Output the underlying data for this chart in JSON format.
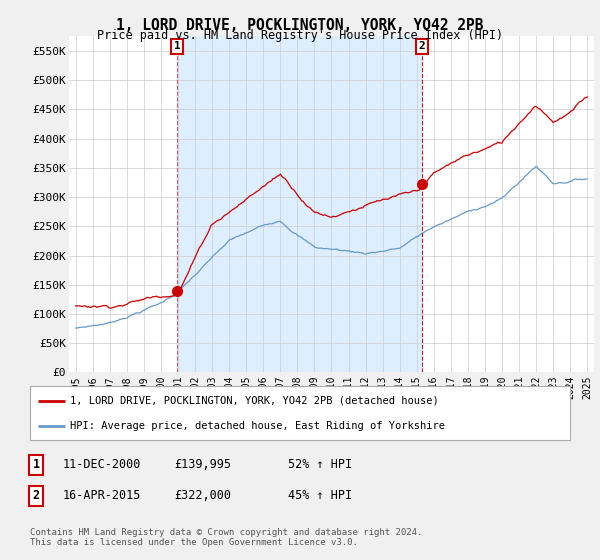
{
  "title": "1, LORD DRIVE, POCKLINGTON, YORK, YO42 2PB",
  "subtitle": "Price paid vs. HM Land Registry's House Price Index (HPI)",
  "ylim": [
    0,
    575000
  ],
  "yticks": [
    0,
    50000,
    100000,
    150000,
    200000,
    250000,
    300000,
    350000,
    400000,
    450000,
    500000,
    550000
  ],
  "ytick_labels": [
    "£0",
    "£50K",
    "£100K",
    "£150K",
    "£200K",
    "£250K",
    "£300K",
    "£350K",
    "£400K",
    "£450K",
    "£500K",
    "£550K"
  ],
  "line1_color": "#cc0000",
  "line2_color": "#6699cc",
  "shade_color": "#ddeeff",
  "legend_line1": "1, LORD DRIVE, POCKLINGTON, YORK, YO42 2PB (detached house)",
  "legend_line2": "HPI: Average price, detached house, East Riding of Yorkshire",
  "sale1_x": 2000.95,
  "sale1_y": 139995,
  "sale1_label": "1",
  "sale1_date": "11-DEC-2000",
  "sale1_price": "£139,995",
  "sale1_hpi": "52% ↑ HPI",
  "sale2_x": 2015.29,
  "sale2_y": 322000,
  "sale2_label": "2",
  "sale2_date": "16-APR-2015",
  "sale2_price": "£322,000",
  "sale2_hpi": "45% ↑ HPI",
  "copyright": "Contains HM Land Registry data © Crown copyright and database right 2024.\nThis data is licensed under the Open Government Licence v3.0.",
  "bg_color": "#f0f0f0",
  "plot_bg_color": "#ffffff",
  "grid_color": "#cccccc",
  "xlim_left": 1994.6,
  "xlim_right": 2025.4
}
